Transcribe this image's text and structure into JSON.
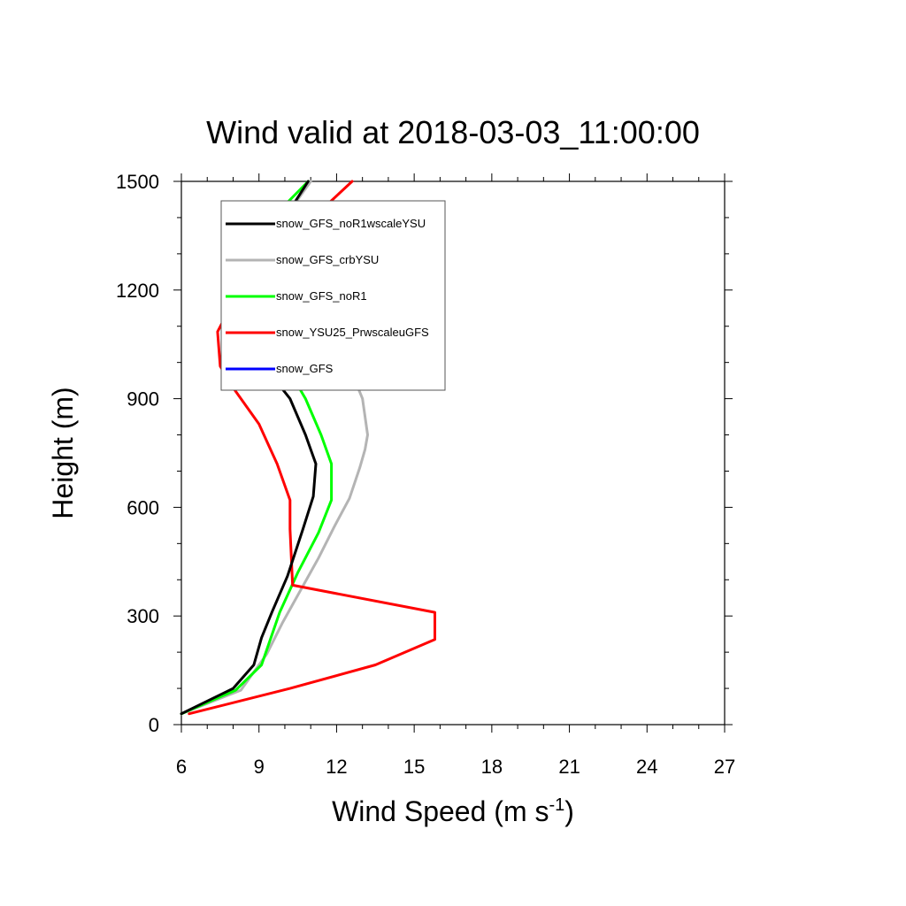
{
  "chart_data": {
    "type": "line",
    "title": "Wind valid at 2018-03-03_11:00:00",
    "xlabel": {
      "main": "Wind Speed (m s",
      "sup": "-1",
      "close": ")"
    },
    "ylabel": "Height (m)",
    "xlim": [
      6,
      27
    ],
    "ylim": [
      0,
      1500
    ],
    "xticks": [
      6,
      9,
      12,
      15,
      18,
      21,
      24,
      27
    ],
    "yticks": [
      0,
      300,
      600,
      900,
      1200,
      1500
    ],
    "legend_position": "top-left",
    "series": [
      {
        "name": "snow_GFS",
        "color": "#0000ff",
        "x": [
          6.0,
          8.3,
          9.0,
          9.3,
          9.9,
          10.6,
          11.3,
          11.9,
          12.5,
          12.9,
          13.1,
          13.2,
          13.0,
          12.8,
          12.5,
          11.9,
          11.3,
          10.5,
          9.5,
          9.4,
          10.0,
          11.0
        ],
        "y": [
          30,
          95,
          165,
          195,
          280,
          370,
          460,
          545,
          625,
          710,
          760,
          800,
          900,
          935,
          1020,
          1100,
          1185,
          1230,
          1290,
          1320,
          1400,
          1500
        ]
      },
      {
        "name": "snow_GFS_crbYSU",
        "color": "#b4b4b4",
        "x": [
          6.0,
          8.3,
          9.0,
          9.3,
          9.9,
          10.6,
          11.3,
          11.9,
          12.5,
          12.9,
          13.1,
          13.2,
          13.0,
          12.8,
          12.5,
          11.9,
          11.3,
          10.5,
          9.5,
          9.4,
          10.0,
          11.0
        ],
        "y": [
          30,
          95,
          165,
          195,
          280,
          370,
          460,
          545,
          625,
          710,
          760,
          800,
          900,
          935,
          1020,
          1100,
          1185,
          1230,
          1290,
          1320,
          1400,
          1500
        ]
      },
      {
        "name": "snow_GFS_noR1",
        "color": "#00ff00",
        "x": [
          6.0,
          8.1,
          9.1,
          9.8,
          10.5,
          11.3,
          11.8,
          11.8,
          11.4,
          10.8,
          10.1,
          9.4,
          8.4,
          8.1,
          8.6,
          9.2,
          9.8,
          10.9
        ],
        "y": [
          30,
          95,
          165,
          310,
          420,
          530,
          620,
          720,
          800,
          900,
          985,
          1085,
          1185,
          1230,
          1300,
          1360,
          1420,
          1500
        ]
      },
      {
        "name": "snow_YSU25_PrwscaleuGFS",
        "color": "#ff0000",
        "x": [
          6.3,
          10.2,
          13.5,
          15.8,
          15.8,
          10.3,
          10.2,
          10.2,
          9.7,
          9.0,
          8.0,
          7.5,
          7.4,
          7.8,
          8.8,
          9.9,
          11.1,
          12.6
        ],
        "y": [
          30,
          100,
          165,
          235,
          310,
          385,
          540,
          620,
          720,
          830,
          930,
          990,
          1085,
          1140,
          1220,
          1310,
          1400,
          1500
        ]
      },
      {
        "name": "snow_GFS_noR1wscaleYSU",
        "color": "#000000",
        "x": [
          6.0,
          8.0,
          8.8,
          9.1,
          9.5,
          10.1,
          10.7,
          11.1,
          11.2,
          10.8,
          10.2,
          9.2,
          8.1,
          7.9,
          8.4,
          9.1,
          10.0,
          10.9
        ],
        "y": [
          30,
          100,
          165,
          240,
          310,
          410,
          540,
          630,
          720,
          800,
          900,
          990,
          1085,
          1185,
          1250,
          1300,
          1400,
          1500
        ]
      }
    ],
    "legend": [
      {
        "label": "snow_GFS_noR1wscaleYSU",
        "color": "#000000"
      },
      {
        "label": "snow_GFS_crbYSU",
        "color": "#b4b4b4"
      },
      {
        "label": "snow_GFS_noR1",
        "color": "#00ff00"
      },
      {
        "label": "snow_YSU25_PrwscaleuGFS",
        "color": "#ff0000"
      },
      {
        "label": "snow_GFS",
        "color": "#0000ff"
      }
    ]
  }
}
